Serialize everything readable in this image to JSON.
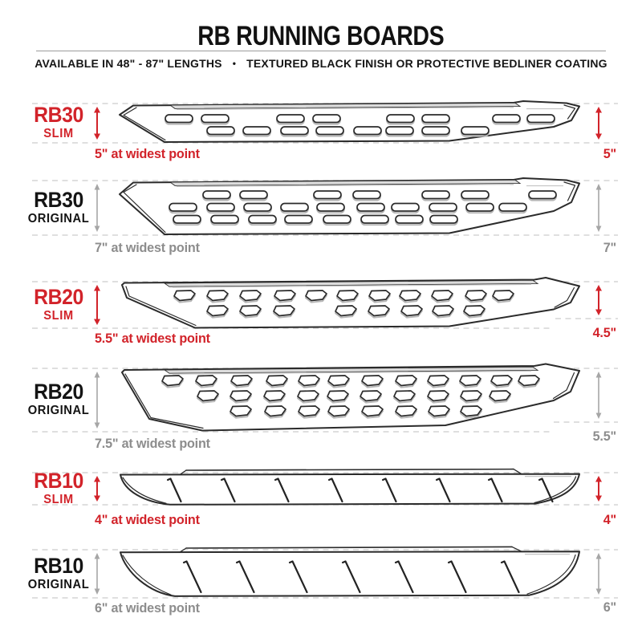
{
  "header": {
    "title": "RB RUNNING BOARDS",
    "subtitle_left": "AVAILABLE IN 48\" - 87\" LENGTHS",
    "subtitle_separator": "•",
    "subtitle_right": "TEXTURED BLACK FINISH OR PROTECTIVE BEDLINER COATING"
  },
  "colors": {
    "accent_red": "#d2232a",
    "text_dark": "#141414",
    "muted_gray": "#8d8d8d",
    "arrow_gray": "#a6a6a6",
    "guide_gray": "#cccccc",
    "outline": "#2b2b2b",
    "slot_shadow": "#b6b6b6",
    "strip_fill": "#dcdcdc"
  },
  "rows": [
    {
      "model": "RB30",
      "variant": "SLIM",
      "accent": "red",
      "pattern": "oval-slots",
      "widest_label": "5\" at widest point",
      "right_value": "5\""
    },
    {
      "model": "RB30",
      "variant": "ORIGINAL",
      "accent": "gray",
      "pattern": "oval-slots",
      "widest_label": "7\" at widest point",
      "right_value": "7\""
    },
    {
      "model": "RB20",
      "variant": "SLIM",
      "accent": "red",
      "pattern": "d-slots",
      "widest_label": "5.5\" at widest point",
      "right_value": "4.5\""
    },
    {
      "model": "RB20",
      "variant": "ORIGINAL",
      "accent": "gray",
      "pattern": "d-slots",
      "widest_label": "7.5\" at widest point",
      "right_value": "5.5\""
    },
    {
      "model": "RB10",
      "variant": "SLIM",
      "accent": "red",
      "pattern": "slash-treads",
      "widest_label": "4\" at widest point",
      "right_value": "4\""
    },
    {
      "model": "RB10",
      "variant": "ORIGINAL",
      "accent": "gray",
      "pattern": "slash-treads",
      "widest_label": "6\" at widest point",
      "right_value": "6\""
    }
  ]
}
